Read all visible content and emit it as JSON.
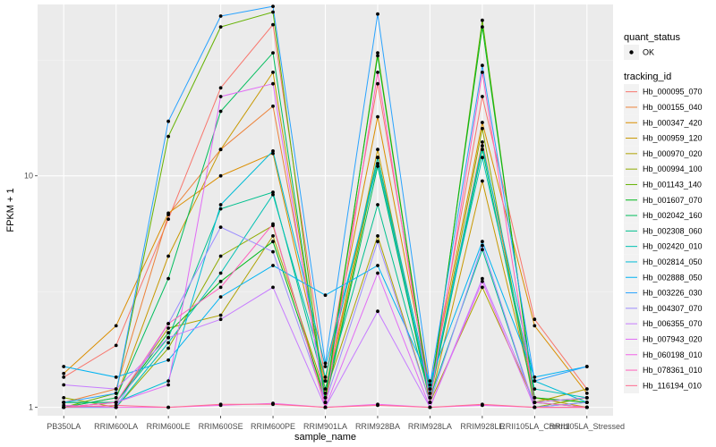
{
  "chart_data": {
    "type": "line",
    "xlabel": "sample_name",
    "ylabel": "FPKM + 1",
    "y_scale": "log10",
    "ylim": [
      0.92,
      55
    ],
    "y_ticks": [
      {
        "value": 1,
        "label": "1"
      },
      {
        "value": 10,
        "label": "10"
      }
    ],
    "categories": [
      "PB350LA",
      "RRIM600LA",
      "RRIM600LE",
      "RRIM600SE",
      "RRIM600PE",
      "RRIM901LA",
      "RRIM928BA",
      "RRIM928LA",
      "RRIM928LE",
      "RRII105LA_Control",
      "RRII105LA_Stressed"
    ],
    "grid": true,
    "legend_position": "right",
    "quant_legend": {
      "title": "quant_status",
      "items": [
        "OK"
      ]
    },
    "legend_title": "tracking_id",
    "series": [
      {
        "name": "Hb_000095_070",
        "color": "#F8766D",
        "values": [
          1.35,
          1.85,
          6.5,
          24,
          45,
          1.3,
          25,
          1.2,
          22,
          2.4,
          1.2
        ]
      },
      {
        "name": "Hb_000155_040",
        "color": "#EC8239",
        "values": [
          1.05,
          1.2,
          6.8,
          13,
          20,
          1.2,
          12,
          1.1,
          14,
          1.1,
          1.05
        ]
      },
      {
        "name": "Hb_000347_420",
        "color": "#DB8E00",
        "values": [
          1.4,
          2.25,
          6.9,
          10,
          12.5,
          1.3,
          18,
          1.2,
          17,
          2.25,
          1.15
        ]
      },
      {
        "name": "Hb_000959_120",
        "color": "#C79800",
        "values": [
          1.0,
          1.1,
          4.5,
          13,
          28,
          1.1,
          13,
          1.05,
          9.5,
          1.1,
          1.0
        ]
      },
      {
        "name": "Hb_000970_020",
        "color": "#AEA200",
        "values": [
          1.05,
          1.05,
          2.2,
          2.5,
          5.5,
          1.15,
          5.5,
          1.05,
          3.3,
          1.05,
          1.2
        ]
      },
      {
        "name": "Hb_000994_100",
        "color": "#8FAA00",
        "values": [
          1.1,
          1.0,
          1.8,
          4.5,
          6.1,
          1.05,
          34,
          1.1,
          16,
          1.0,
          1.1
        ]
      },
      {
        "name": "Hb_001143_140",
        "color": "#64B200",
        "values": [
          1.0,
          1.15,
          14.8,
          44,
          51,
          1.05,
          12,
          1.05,
          47,
          1.05,
          1.1
        ]
      },
      {
        "name": "Hb_001607_070",
        "color": "#00B81B",
        "values": [
          1.05,
          1.05,
          2.1,
          3.5,
          5.2,
          1.1,
          33,
          1.1,
          44,
          1.1,
          1.05
        ]
      },
      {
        "name": "Hb_002042_160",
        "color": "#00BD5C",
        "values": [
          1.0,
          1.1,
          3.6,
          19,
          34,
          1.05,
          11,
          1.1,
          13,
          1.05,
          1.0
        ]
      },
      {
        "name": "Hb_002308_060",
        "color": "#00C08E",
        "values": [
          1.05,
          1.05,
          2.0,
          7.2,
          8.5,
          1.2,
          7.5,
          1.1,
          4.8,
          1.0,
          1.05
        ]
      },
      {
        "name": "Hb_002420_010",
        "color": "#00C1B2",
        "values": [
          1.0,
          1.0,
          1.9,
          3.8,
          8.3,
          1.35,
          12,
          1.2,
          12,
          1.2,
          1.1
        ]
      },
      {
        "name": "Hb_002814_050",
        "color": "#00BCD6",
        "values": [
          1.0,
          1.05,
          1.3,
          7.5,
          12.8,
          1.5,
          11.3,
          1.15,
          13.5,
          1.3,
          1.05
        ]
      },
      {
        "name": "Hb_002888_050",
        "color": "#00B3F2",
        "values": [
          1.5,
          1.35,
          1.6,
          3.0,
          4.1,
          3.05,
          4.1,
          1.3,
          5.2,
          1.35,
          1.5
        ]
      },
      {
        "name": "Hb_003226_030",
        "color": "#29A3FF",
        "values": [
          1.05,
          1.15,
          17.2,
          49,
          54,
          1.55,
          50,
          1.25,
          30,
          1.3,
          1.5
        ]
      },
      {
        "name": "Hb_004307_070",
        "color": "#9C8DFF",
        "values": [
          1.0,
          1.0,
          2.3,
          6.0,
          4.7,
          1.05,
          5.2,
          1.05,
          5.0,
          1.0,
          1.05
        ]
      },
      {
        "name": "Hb_006355_070",
        "color": "#C77CFF",
        "values": [
          1.25,
          1.2,
          2.0,
          2.4,
          3.3,
          1.0,
          2.6,
          1.0,
          3.6,
          1.05,
          1.1
        ]
      },
      {
        "name": "Hb_007943_020",
        "color": "#E16CF5",
        "values": [
          1.0,
          1.05,
          1.25,
          22,
          25,
          1.0,
          3.8,
          1.0,
          3.5,
          1.0,
          1.0
        ]
      },
      {
        "name": "Hb_060198_010",
        "color": "#F265E7",
        "values": [
          1.02,
          1.0,
          1.0,
          1.02,
          1.04,
          1.0,
          1.03,
          1.0,
          1.02,
          1.0,
          1.0
        ]
      },
      {
        "name": "Hb_078361_010",
        "color": "#FF62BC",
        "values": [
          1.0,
          1.05,
          2.3,
          3.3,
          6.2,
          1.0,
          28,
          1.05,
          28,
          1.05,
          1.0
        ]
      },
      {
        "name": "Hb_116194_010",
        "color": "#FF6C90",
        "values": [
          1.0,
          1.02,
          1.0,
          1.03,
          1.03,
          1.0,
          1.02,
          1.0,
          1.03,
          1.0,
          1.0
        ]
      }
    ]
  }
}
